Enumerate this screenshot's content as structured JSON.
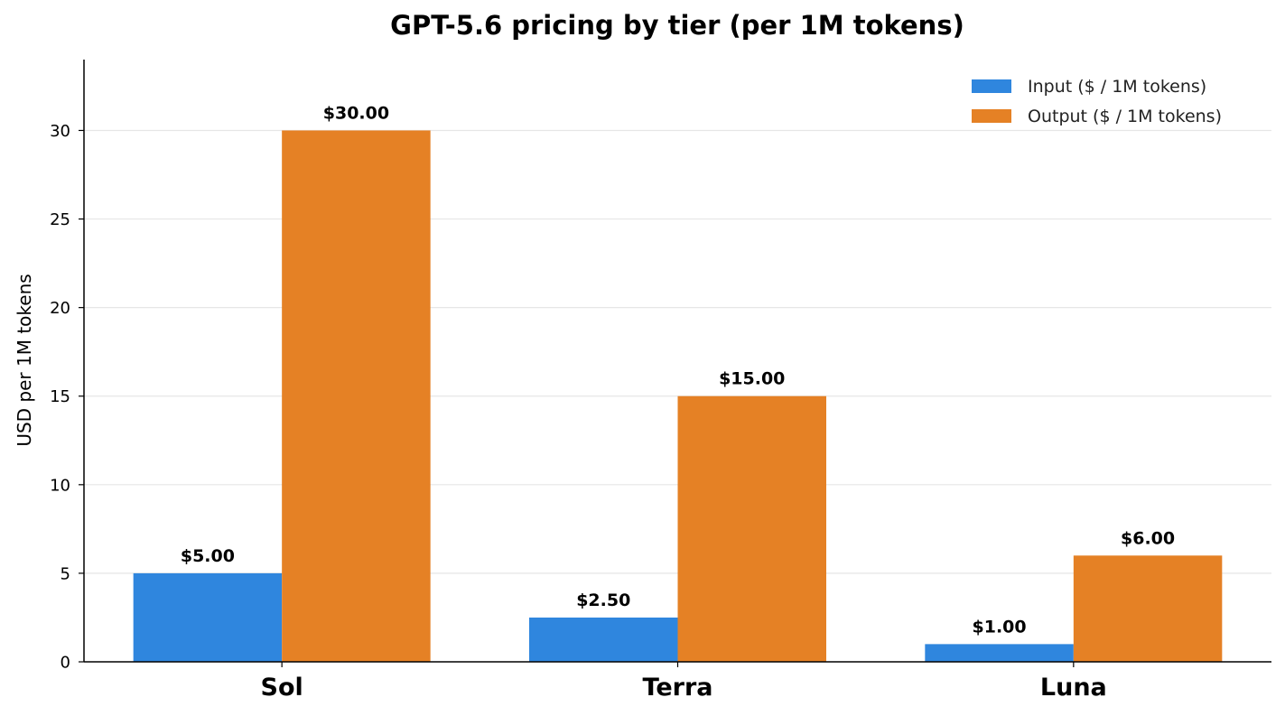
{
  "chart_data": {
    "type": "bar",
    "title": "GPT-5.6 pricing by tier (per 1M tokens)",
    "xlabel": "",
    "ylabel": "USD per 1M tokens",
    "categories": [
      "Sol",
      "Terra",
      "Luna"
    ],
    "series": [
      {
        "name": "Input ($ / 1M tokens)",
        "values": [
          5.0,
          2.5,
          1.0
        ],
        "labels": [
          "$5.00",
          "$2.50",
          "$1.00"
        ],
        "color": "#2f86de"
      },
      {
        "name": "Output ($ / 1M tokens)",
        "values": [
          30.0,
          15.0,
          6.0
        ],
        "labels": [
          "$30.00",
          "$15.00",
          "$6.00"
        ],
        "color": "#e58125"
      }
    ],
    "ylim": [
      0,
      34
    ],
    "yticks": [
      0,
      5,
      10,
      15,
      20,
      25,
      30
    ],
    "grid": "horizontal",
    "legend_position": "top-right"
  }
}
